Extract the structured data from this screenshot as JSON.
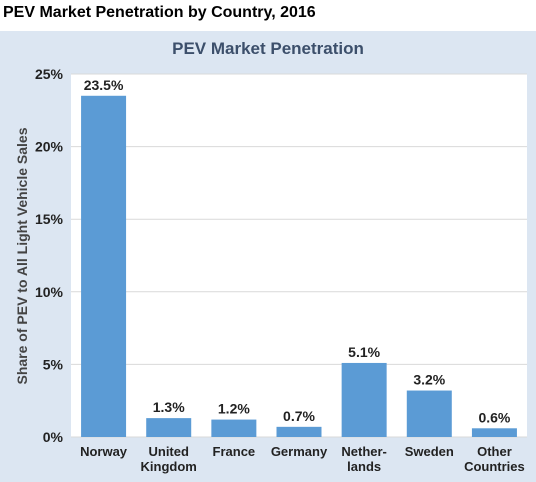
{
  "page": {
    "title": "PEV Market Penetration by Country, 2016"
  },
  "chart_data": {
    "type": "bar",
    "title": "PEV Market Penetration",
    "xlabel": "",
    "ylabel": "Share of PEV to All Light Vehicle Sales",
    "ylim": [
      0,
      25
    ],
    "yticks": [
      {
        "value": 0,
        "label": "0%"
      },
      {
        "value": 5,
        "label": "5%"
      },
      {
        "value": 10,
        "label": "10%"
      },
      {
        "value": 15,
        "label": "15%"
      },
      {
        "value": 20,
        "label": "20%"
      },
      {
        "value": 25,
        "label": "25%"
      }
    ],
    "grid": true,
    "bar_color": "#5b9bd5",
    "categories": [
      [
        "Norway"
      ],
      [
        "United",
        "Kingdom"
      ],
      [
        "France"
      ],
      [
        "Germany"
      ],
      [
        "Nether-",
        "lands"
      ],
      [
        "Sweden"
      ],
      [
        "Other",
        "Countries"
      ]
    ],
    "values": [
      23.5,
      1.3,
      1.2,
      0.7,
      5.1,
      3.2,
      0.6
    ],
    "data_labels": [
      "23.5%",
      "1.3%",
      "1.2%",
      "0.7%",
      "5.1%",
      "3.2%",
      "0.6%"
    ]
  }
}
